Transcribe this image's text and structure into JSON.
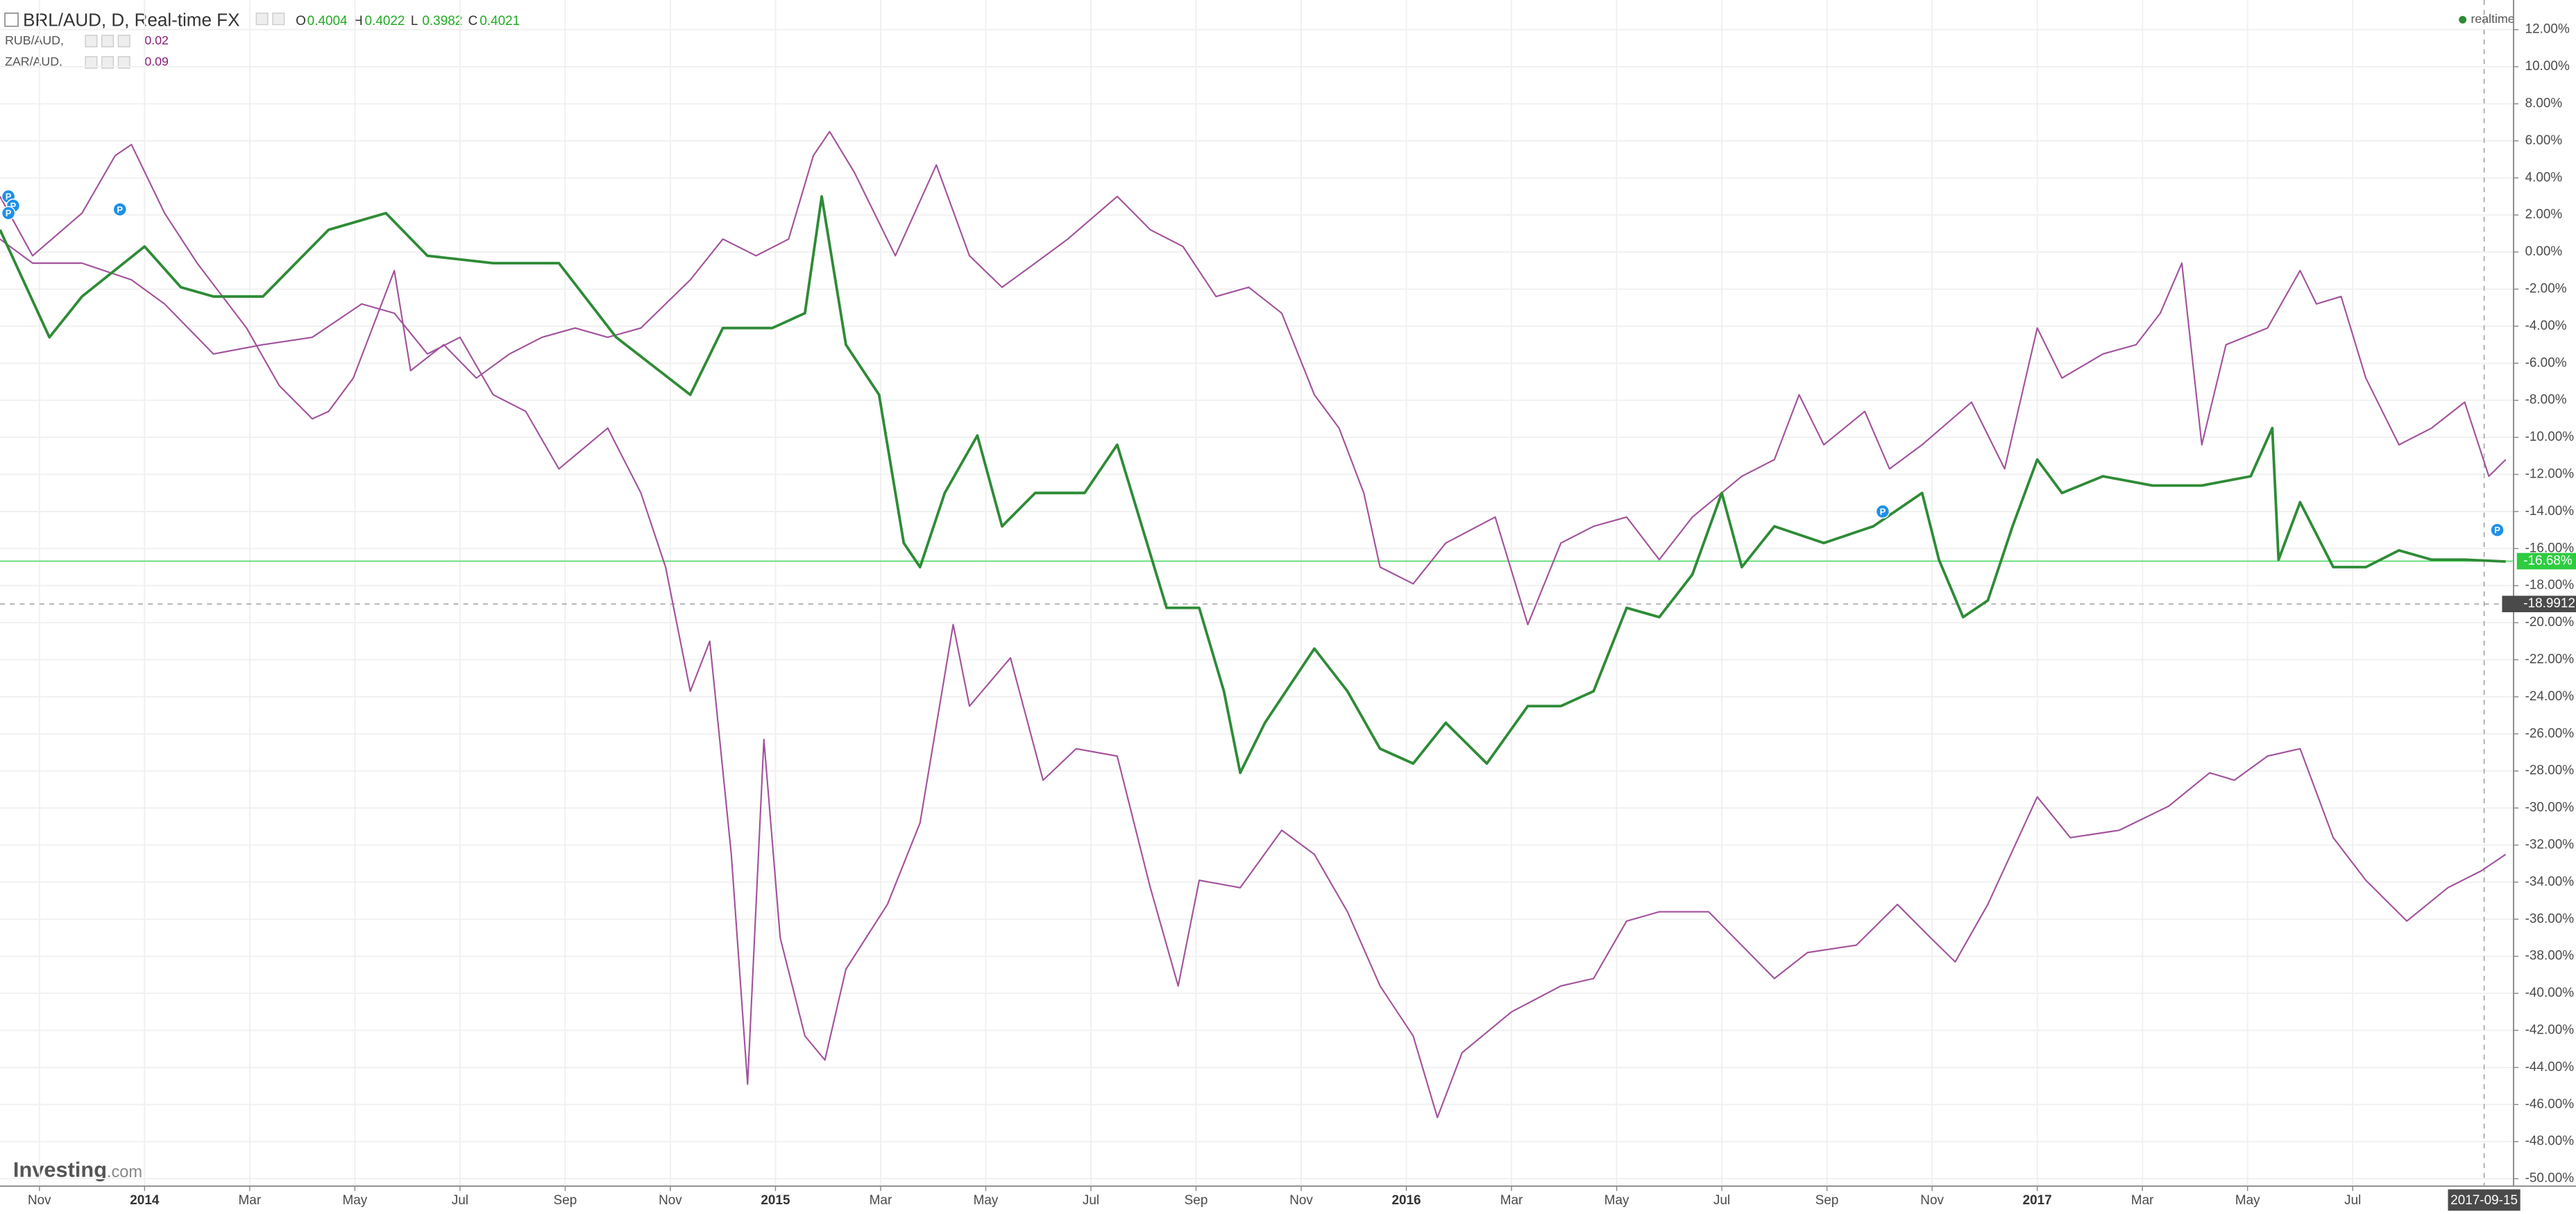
{
  "header": {
    "ohlc": [
      {
        "key": "O",
        "value": "0.4004"
      },
      {
        "key": "H",
        "value": "0.4022"
      },
      {
        "key": "L",
        "value": "0.3982"
      },
      {
        "key": "C",
        "value": "0.4021"
      }
    ],
    "status": "realtime",
    "logo_main": "Investing",
    "logo_suffix": ".com"
  },
  "chart_data": {
    "type": "line",
    "series": [
      {
        "name": "BRL/AUD, D, Real-time FX",
        "color": "#2e8b36",
        "x": [
          -2.75,
          -1.81,
          -1.19,
          0,
          0.69,
          1.31,
          2.25,
          3.5,
          4.59,
          5.38,
          6.63,
          7.88,
          8.97,
          10.38,
          11,
          11.94,
          12.56,
          12.88,
          13.34,
          13.97,
          14.44,
          14.75,
          15.22,
          15.84,
          16.31,
          16.94,
          17.88,
          18.5,
          18.97,
          19.44,
          20.06,
          20.53,
          20.84,
          21.31,
          22.25,
          22.88,
          23.5,
          24.13,
          24.75,
          25.53,
          26.31,
          26.94,
          27.56,
          28.19,
          28.81,
          29.44,
          30,
          30.38,
          31,
          31.94,
          32.88,
          33.81,
          34.13,
          34.59,
          35.06,
          35.53,
          36,
          36.47,
          37.25,
          38.19,
          39.13,
          40.06,
          40.47,
          40.59,
          41,
          41.63,
          42.25,
          42.88,
          43.5,
          44.13,
          44.91
        ],
        "values": [
          1.2,
          -4.6,
          -2.4,
          0.3,
          -1.9,
          -2.4,
          -2.4,
          1.2,
          2.1,
          -0.2,
          -0.6,
          -0.6,
          -4.6,
          -7.7,
          -4.1,
          -4.1,
          -3.3,
          3.0,
          -5.0,
          -7.7,
          -15.7,
          -17.0,
          -13.0,
          -9.9,
          -14.8,
          -13.0,
          -13.0,
          -10.4,
          -14.8,
          -19.2,
          -19.2,
          -23.7,
          -28.1,
          -25.4,
          -21.4,
          -23.7,
          -26.8,
          -27.6,
          -25.4,
          -27.6,
          -24.5,
          -24.5,
          -23.7,
          -19.2,
          -19.7,
          -17.4,
          -13.0,
          -17.0,
          -14.8,
          -15.7,
          -14.8,
          -13.0,
          -16.6,
          -19.7,
          -18.8,
          -14.8,
          -11.2,
          -13.0,
          -12.1,
          -12.6,
          -12.6,
          -12.1,
          -9.5,
          -16.6,
          -13.5,
          -17.0,
          -17.0,
          -16.1,
          -16.6,
          -16.6,
          -16.7
        ]
      },
      {
        "name": "RUB/AUD,",
        "legend_value": "0.02",
        "color": "#a2529c",
        "x": [
          -2.75,
          -2.13,
          -1.19,
          -0.25,
          0.38,
          1.31,
          2.25,
          3.19,
          4.13,
          4.75,
          5.38,
          6,
          6.63,
          7.25,
          7.88,
          8.81,
          9.44,
          9.91,
          10.38,
          10.75,
          11.16,
          11.47,
          11.78,
          12.09,
          12.56,
          12.94,
          13.34,
          14.13,
          14.75,
          15.38,
          15.69,
          16.47,
          17.09,
          17.72,
          18.5,
          19.13,
          19.66,
          20.06,
          20.84,
          21.63,
          22.25,
          22.88,
          23.5,
          24.13,
          24.59,
          25.06,
          26,
          26.94,
          27.56,
          28.19,
          28.81,
          29.75,
          31,
          31.63,
          32.56,
          33.34,
          33.97,
          34.44,
          35.06,
          36,
          36.63,
          37.56,
          38.5,
          39.28,
          39.75,
          40.38,
          41,
          41.63,
          42.25,
          43.03,
          43.81,
          44.44,
          44.91
        ],
        "values": [
          0.7,
          -0.6,
          -0.6,
          -1.5,
          -2.8,
          -5.5,
          -5.0,
          -4.6,
          -2.8,
          -3.3,
          -5.5,
          -4.6,
          -7.7,
          -8.6,
          -11.7,
          -9.5,
          -13.0,
          -17.0,
          -23.7,
          -21.0,
          -32.5,
          -44.9,
          -26.3,
          -37.0,
          -42.3,
          -43.6,
          -38.7,
          -35.2,
          -30.8,
          -20.1,
          -24.5,
          -21.9,
          -28.5,
          -26.8,
          -27.2,
          -34.3,
          -39.6,
          -33.9,
          -34.3,
          -31.2,
          -32.5,
          -35.6,
          -39.6,
          -42.3,
          -46.7,
          -43.2,
          -41.0,
          -39.6,
          -39.2,
          -36.1,
          -35.6,
          -35.6,
          -39.2,
          -37.8,
          -37.4,
          -35.2,
          -37.0,
          -38.3,
          -35.2,
          -29.4,
          -31.6,
          -31.2,
          -29.9,
          -28.1,
          -28.5,
          -27.2,
          -26.8,
          -31.6,
          -33.9,
          -36.1,
          -34.3,
          -33.4,
          -32.5
        ]
      },
      {
        "name": "ZAR/AUD,",
        "legend_value": "0.09",
        "color": "#a2529c",
        "x": [
          -2.75,
          -2.13,
          -1.19,
          -0.56,
          -0.25,
          0.38,
          1,
          1.94,
          2.56,
          3.19,
          3.5,
          3.97,
          4.75,
          5.06,
          5.69,
          6.31,
          6.94,
          7.56,
          8.19,
          8.81,
          9.44,
          10.38,
          11,
          11.63,
          12.25,
          12.72,
          13.03,
          13.5,
          14.28,
          15.06,
          15.69,
          16.31,
          16.94,
          17.56,
          18.5,
          19.13,
          19.75,
          20.38,
          21,
          21.63,
          22.25,
          22.72,
          23.19,
          23.5,
          24.13,
          24.75,
          25.69,
          26.31,
          26.94,
          27.56,
          28.19,
          28.81,
          29.44,
          30.38,
          31,
          31.47,
          31.94,
          32.72,
          33.19,
          33.81,
          34.75,
          35.38,
          36,
          36.47,
          37.25,
          37.88,
          38.34,
          38.75,
          39.13,
          39.59,
          40.38,
          41,
          41.31,
          41.78,
          42.25,
          42.88,
          43.5,
          44.13,
          44.59,
          44.91
        ],
        "values": [
          3.0,
          -0.2,
          2.1,
          5.2,
          5.8,
          2.1,
          -0.6,
          -4.1,
          -7.2,
          -9.0,
          -8.6,
          -6.8,
          -1.0,
          -6.4,
          -5.0,
          -6.8,
          -5.5,
          -4.6,
          -4.1,
          -4.6,
          -4.1,
          -1.5,
          0.7,
          -0.2,
          0.7,
          5.2,
          6.5,
          4.3,
          -0.2,
          4.7,
          -0.2,
          -1.9,
          -0.6,
          0.7,
          3.0,
          1.2,
          0.3,
          -2.4,
          -1.9,
          -3.3,
          -7.7,
          -9.5,
          -13.0,
          -17.0,
          -17.9,
          -15.7,
          -14.3,
          -20.1,
          -15.7,
          -14.8,
          -14.3,
          -16.6,
          -14.3,
          -12.1,
          -11.2,
          -7.7,
          -10.4,
          -8.6,
          -11.7,
          -10.4,
          -8.1,
          -11.7,
          -4.1,
          -6.8,
          -5.5,
          -5.0,
          -3.3,
          -0.6,
          -10.4,
          -5.0,
          -4.1,
          -1.0,
          -2.8,
          -2.4,
          -6.8,
          -10.4,
          -9.5,
          -8.1,
          -12.1,
          -11.2
        ]
      }
    ],
    "markers": [
      {
        "x": -2.59,
        "y": 3.0,
        "label": "P"
      },
      {
        "x": -2.5,
        "y": 2.5,
        "label": "P"
      },
      {
        "x": -2.59,
        "y": 2.1,
        "label": "P"
      },
      {
        "x": -0.47,
        "y": 2.3,
        "label": "P"
      },
      {
        "x": 33.06,
        "y": -14.0,
        "label": "P"
      },
      {
        "x": 44.75,
        "y": -15.0,
        "label": "P"
      }
    ],
    "last_price": {
      "value": -16.68,
      "label": "-16.68%"
    },
    "crosshair": {
      "x": {
        "value": 44.5,
        "label": "2017-09-15"
      },
      "y": -18.9912
    },
    "xlim": [
      -2.75,
      45.06
    ],
    "ylim": [
      -50.4,
      13.6
    ],
    "grid": true,
    "xticks": [
      {
        "value": -2,
        "label": "Nov"
      },
      {
        "value": 0,
        "label": "2014"
      },
      {
        "value": 2,
        "label": "Mar"
      },
      {
        "value": 4,
        "label": "May"
      },
      {
        "value": 6,
        "label": "Jul"
      },
      {
        "value": 8,
        "label": "Sep"
      },
      {
        "value": 10,
        "label": "Nov"
      },
      {
        "value": 12,
        "label": "2015"
      },
      {
        "value": 14,
        "label": "Mar"
      },
      {
        "value": 16,
        "label": "May"
      },
      {
        "value": 18,
        "label": "Jul"
      },
      {
        "value": 20,
        "label": "Sep"
      },
      {
        "value": 22,
        "label": "Nov"
      },
      {
        "value": 24,
        "label": "2016"
      },
      {
        "value": 26,
        "label": "Mar"
      },
      {
        "value": 28,
        "label": "May"
      },
      {
        "value": 30,
        "label": "Jul"
      },
      {
        "value": 32,
        "label": "Sep"
      },
      {
        "value": 34,
        "label": "Nov"
      },
      {
        "value": 36,
        "label": "2017"
      },
      {
        "value": 38,
        "label": "Mar"
      },
      {
        "value": 40,
        "label": "May"
      },
      {
        "value": 42,
        "label": "Jul"
      }
    ],
    "yticks": [
      {
        "value": 12,
        "label": "12.00%"
      },
      {
        "value": 10,
        "label": "10.00%"
      },
      {
        "value": 8,
        "label": "8.00%"
      },
      {
        "value": 6,
        "label": "6.00%"
      },
      {
        "value": 4,
        "label": "4.00%"
      },
      {
        "value": 2,
        "label": "2.00%"
      },
      {
        "value": 0,
        "label": "0.00%"
      },
      {
        "value": -2,
        "label": "-2.00%"
      },
      {
        "value": -4,
        "label": "-4.00%"
      },
      {
        "value": -6,
        "label": "-6.00%"
      },
      {
        "value": -8,
        "label": "-8.00%"
      },
      {
        "value": -10,
        "label": "-10.00%"
      },
      {
        "value": -12,
        "label": "-12.00%"
      },
      {
        "value": -14,
        "label": "-14.00%"
      },
      {
        "value": -16,
        "label": "-16.00%"
      },
      {
        "value": -18,
        "label": "-18.00%"
      },
      {
        "value": -20,
        "label": "-20.00%"
      },
      {
        "value": -22,
        "label": "-22.00%"
      },
      {
        "value": -24,
        "label": "-24.00%"
      },
      {
        "value": -26,
        "label": "-26.00%"
      },
      {
        "value": -28,
        "label": "-28.00%"
      },
      {
        "value": -30,
        "label": "-30.00%"
      },
      {
        "value": -32,
        "label": "-32.00%"
      },
      {
        "value": -34,
        "label": "-34.00%"
      },
      {
        "value": -36,
        "label": "-36.00%"
      },
      {
        "value": -38,
        "label": "-38.00%"
      },
      {
        "value": -40,
        "label": "-40.00%"
      },
      {
        "value": -42,
        "label": "-42.00%"
      },
      {
        "value": -44,
        "label": "-44.00%"
      },
      {
        "value": -46,
        "label": "-46.00%"
      },
      {
        "value": -48,
        "label": "-48.00%"
      },
      {
        "value": -50,
        "label": "-50.00%"
      }
    ]
  }
}
